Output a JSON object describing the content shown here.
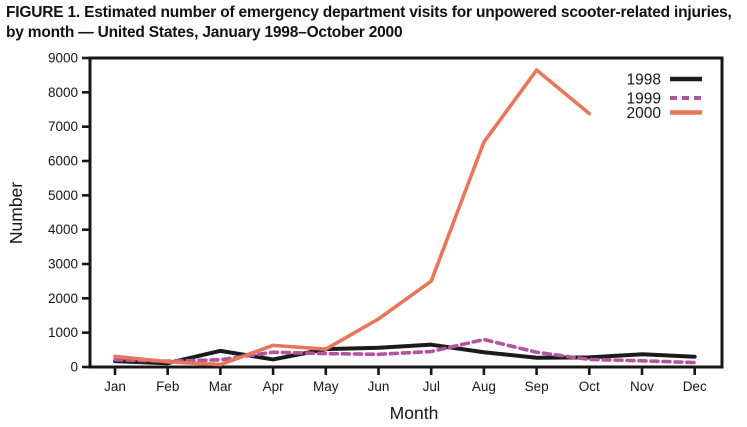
{
  "figure": {
    "title": "FIGURE 1. Estimated number of emergency department visits for unpowered scooter-related injuries, by month — United States, January 1998–October 2000"
  },
  "chart_data": {
    "type": "line",
    "title": "FIGURE 1. Estimated number of emergency department visits for unpowered scooter-related injuries, by month — United States, January 1998–October 2000",
    "xlabel": "Month",
    "ylabel": "Number",
    "ylim": [
      0,
      9000
    ],
    "ytick_interval": 1000,
    "grid": false,
    "legend_position": "top-right-inside",
    "categories": [
      "Jan",
      "Feb",
      "Mar",
      "Apr",
      "May",
      "Jun",
      "Jul",
      "Aug",
      "Sep",
      "Oct",
      "Nov",
      "Dec"
    ],
    "series": [
      {
        "name": "1998",
        "color": "#1b1b1b",
        "style": "solid",
        "values": [
          170,
          110,
          470,
          220,
          520,
          560,
          650,
          430,
          270,
          280,
          370,
          300
        ]
      },
      {
        "name": "1999",
        "color": "#b3549f",
        "style": "dashed",
        "values": [
          210,
          170,
          210,
          430,
          390,
          370,
          450,
          800,
          430,
          220,
          180,
          130
        ]
      },
      {
        "name": "2000",
        "color": "#e8765a",
        "style": "solid",
        "values": [
          310,
          150,
          70,
          630,
          520,
          1400,
          2500,
          6550,
          8650,
          7380
        ]
      }
    ]
  }
}
